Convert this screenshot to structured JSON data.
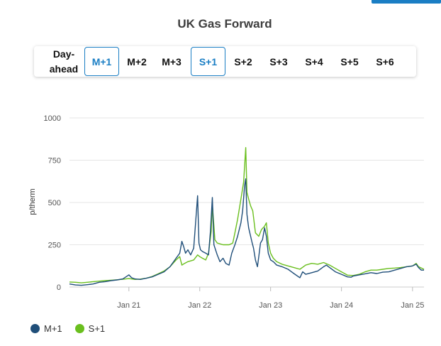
{
  "page": {
    "title": "UK Gas Forward",
    "tabs": [
      {
        "label": "Day-\nahead",
        "active": false
      },
      {
        "label": "M+1",
        "active": true
      },
      {
        "label": "M+2",
        "active": false
      },
      {
        "label": "M+3",
        "active": false
      },
      {
        "label": "S+1",
        "active": true
      },
      {
        "label": "S+2",
        "active": false
      },
      {
        "label": "S+3",
        "active": false
      },
      {
        "label": "S+4",
        "active": false
      },
      {
        "label": "S+5",
        "active": false
      },
      {
        "label": "S+6",
        "active": false
      }
    ],
    "accent_color": "#1a7ec4"
  },
  "chart_data": {
    "type": "line",
    "title": "UK Gas Forward",
    "xlabel": "",
    "ylabel": "p/therm",
    "ylim": [
      0,
      1000
    ],
    "yticks": [
      "0",
      "250",
      "500",
      "750",
      "1000"
    ],
    "xlim": [
      "2020-03-01",
      "2025-03-01"
    ],
    "xticks": [
      {
        "date": "2021-01-01",
        "label": "Jan 21"
      },
      {
        "date": "2022-01-01",
        "label": "Jan 22"
      },
      {
        "date": "2023-01-01",
        "label": "Jan 23"
      },
      {
        "date": "2024-01-01",
        "label": "Jan 24"
      },
      {
        "date": "2025-01-01",
        "label": "Jan 25"
      }
    ],
    "grid": "horizontal",
    "legend_position": "bottom-left",
    "series": [
      {
        "name": "M+1",
        "color": "#1f4e79",
        "points": [
          [
            "2020-03-01",
            18
          ],
          [
            "2020-04-01",
            12
          ],
          [
            "2020-05-01",
            10
          ],
          [
            "2020-06-01",
            14
          ],
          [
            "2020-07-01",
            18
          ],
          [
            "2020-08-01",
            28
          ],
          [
            "2020-09-01",
            32
          ],
          [
            "2020-10-01",
            38
          ],
          [
            "2020-11-01",
            42
          ],
          [
            "2020-12-01",
            48
          ],
          [
            "2021-01-01",
            72
          ],
          [
            "2021-01-15",
            55
          ],
          [
            "2021-02-01",
            48
          ],
          [
            "2021-03-01",
            45
          ],
          [
            "2021-04-01",
            52
          ],
          [
            "2021-05-01",
            60
          ],
          [
            "2021-06-01",
            75
          ],
          [
            "2021-07-01",
            90
          ],
          [
            "2021-08-01",
            120
          ],
          [
            "2021-09-01",
            170
          ],
          [
            "2021-09-20",
            200
          ],
          [
            "2021-10-01",
            270
          ],
          [
            "2021-10-10",
            240
          ],
          [
            "2021-10-20",
            200
          ],
          [
            "2021-11-01",
            220
          ],
          [
            "2021-11-15",
            190
          ],
          [
            "2021-12-01",
            230
          ],
          [
            "2021-12-21",
            540
          ],
          [
            "2021-12-28",
            260
          ],
          [
            "2022-01-05",
            220
          ],
          [
            "2022-01-15",
            210
          ],
          [
            "2022-02-01",
            200
          ],
          [
            "2022-02-15",
            190
          ],
          [
            "2022-02-25",
            330
          ],
          [
            "2022-03-07",
            530
          ],
          [
            "2022-03-15",
            250
          ],
          [
            "2022-04-01",
            190
          ],
          [
            "2022-04-15",
            150
          ],
          [
            "2022-05-01",
            170
          ],
          [
            "2022-05-15",
            140
          ],
          [
            "2022-06-01",
            130
          ],
          [
            "2022-06-15",
            200
          ],
          [
            "2022-07-01",
            250
          ],
          [
            "2022-07-15",
            300
          ],
          [
            "2022-08-01",
            380
          ],
          [
            "2022-08-10",
            450
          ],
          [
            "2022-08-20",
            600
          ],
          [
            "2022-08-26",
            640
          ],
          [
            "2022-09-01",
            430
          ],
          [
            "2022-09-10",
            350
          ],
          [
            "2022-09-20",
            300
          ],
          [
            "2022-09-28",
            260
          ],
          [
            "2022-10-05",
            230
          ],
          [
            "2022-10-15",
            160
          ],
          [
            "2022-10-25",
            120
          ],
          [
            "2022-11-01",
            180
          ],
          [
            "2022-11-10",
            260
          ],
          [
            "2022-11-20",
            280
          ],
          [
            "2022-12-01",
            350
          ],
          [
            "2022-12-10",
            300
          ],
          [
            "2022-12-20",
            200
          ],
          [
            "2023-01-01",
            160
          ],
          [
            "2023-01-15",
            150
          ],
          [
            "2023-02-01",
            130
          ],
          [
            "2023-03-01",
            120
          ],
          [
            "2023-04-01",
            105
          ],
          [
            "2023-05-01",
            80
          ],
          [
            "2023-06-01",
            55
          ],
          [
            "2023-06-15",
            90
          ],
          [
            "2023-07-01",
            75
          ],
          [
            "2023-08-01",
            85
          ],
          [
            "2023-09-01",
            95
          ],
          [
            "2023-10-01",
            120
          ],
          [
            "2023-10-15",
            130
          ],
          [
            "2023-11-01",
            115
          ],
          [
            "2023-12-01",
            90
          ],
          [
            "2024-01-01",
            75
          ],
          [
            "2024-02-01",
            60
          ],
          [
            "2024-02-20",
            58
          ],
          [
            "2024-03-01",
            65
          ],
          [
            "2024-04-01",
            72
          ],
          [
            "2024-05-01",
            78
          ],
          [
            "2024-06-01",
            85
          ],
          [
            "2024-07-01",
            80
          ],
          [
            "2024-08-01",
            88
          ],
          [
            "2024-09-01",
            90
          ],
          [
            "2024-10-01",
            100
          ],
          [
            "2024-11-01",
            110
          ],
          [
            "2024-12-01",
            120
          ],
          [
            "2025-01-01",
            125
          ],
          [
            "2025-01-20",
            135
          ],
          [
            "2025-02-01",
            115
          ],
          [
            "2025-02-15",
            100
          ],
          [
            "2025-03-01",
            100
          ]
        ]
      },
      {
        "name": "S+1",
        "color": "#6abf1e",
        "points": [
          [
            "2020-03-01",
            30
          ],
          [
            "2020-04-01",
            28
          ],
          [
            "2020-05-01",
            25
          ],
          [
            "2020-06-01",
            28
          ],
          [
            "2020-07-01",
            32
          ],
          [
            "2020-08-01",
            35
          ],
          [
            "2020-09-01",
            38
          ],
          [
            "2020-10-01",
            40
          ],
          [
            "2020-11-01",
            43
          ],
          [
            "2020-12-01",
            46
          ],
          [
            "2021-01-01",
            50
          ],
          [
            "2021-02-01",
            45
          ],
          [
            "2021-03-01",
            47
          ],
          [
            "2021-04-01",
            52
          ],
          [
            "2021-05-01",
            62
          ],
          [
            "2021-06-01",
            78
          ],
          [
            "2021-07-01",
            95
          ],
          [
            "2021-08-01",
            120
          ],
          [
            "2021-09-01",
            160
          ],
          [
            "2021-09-20",
            180
          ],
          [
            "2021-10-01",
            130
          ],
          [
            "2021-10-15",
            140
          ],
          [
            "2021-11-01",
            150
          ],
          [
            "2021-12-01",
            160
          ],
          [
            "2021-12-21",
            190
          ],
          [
            "2022-01-01",
            180
          ],
          [
            "2022-01-15",
            170
          ],
          [
            "2022-02-01",
            160
          ],
          [
            "2022-02-15",
            200
          ],
          [
            "2022-03-01",
            330
          ],
          [
            "2022-03-07",
            490
          ],
          [
            "2022-03-20",
            280
          ],
          [
            "2022-04-01",
            260
          ],
          [
            "2022-05-01",
            250
          ],
          [
            "2022-06-01",
            250
          ],
          [
            "2022-06-20",
            260
          ],
          [
            "2022-07-01",
            320
          ],
          [
            "2022-07-15",
            400
          ],
          [
            "2022-08-01",
            520
          ],
          [
            "2022-08-15",
            620
          ],
          [
            "2022-08-26",
            825
          ],
          [
            "2022-09-01",
            560
          ],
          [
            "2022-09-10",
            520
          ],
          [
            "2022-09-20",
            480
          ],
          [
            "2022-10-01",
            450
          ],
          [
            "2022-10-15",
            320
          ],
          [
            "2022-11-01",
            300
          ],
          [
            "2022-11-15",
            340
          ],
          [
            "2022-12-01",
            360
          ],
          [
            "2022-12-10",
            380
          ],
          [
            "2022-12-20",
            260
          ],
          [
            "2023-01-01",
            200
          ],
          [
            "2023-01-15",
            170
          ],
          [
            "2023-02-01",
            150
          ],
          [
            "2023-03-01",
            135
          ],
          [
            "2023-04-01",
            125
          ],
          [
            "2023-05-01",
            115
          ],
          [
            "2023-06-01",
            105
          ],
          [
            "2023-07-01",
            130
          ],
          [
            "2023-08-01",
            140
          ],
          [
            "2023-09-01",
            135
          ],
          [
            "2023-10-01",
            145
          ],
          [
            "2023-11-01",
            130
          ],
          [
            "2023-12-01",
            110
          ],
          [
            "2024-01-01",
            90
          ],
          [
            "2024-02-01",
            70
          ],
          [
            "2024-03-01",
            68
          ],
          [
            "2024-04-01",
            75
          ],
          [
            "2024-05-01",
            90
          ],
          [
            "2024-06-01",
            100
          ],
          [
            "2024-07-01",
            100
          ],
          [
            "2024-08-01",
            105
          ],
          [
            "2024-09-01",
            110
          ],
          [
            "2024-10-01",
            112
          ],
          [
            "2024-11-01",
            115
          ],
          [
            "2024-12-01",
            120
          ],
          [
            "2025-01-01",
            125
          ],
          [
            "2025-01-20",
            140
          ],
          [
            "2025-02-01",
            120
          ],
          [
            "2025-03-01",
            105
          ]
        ]
      }
    ]
  }
}
